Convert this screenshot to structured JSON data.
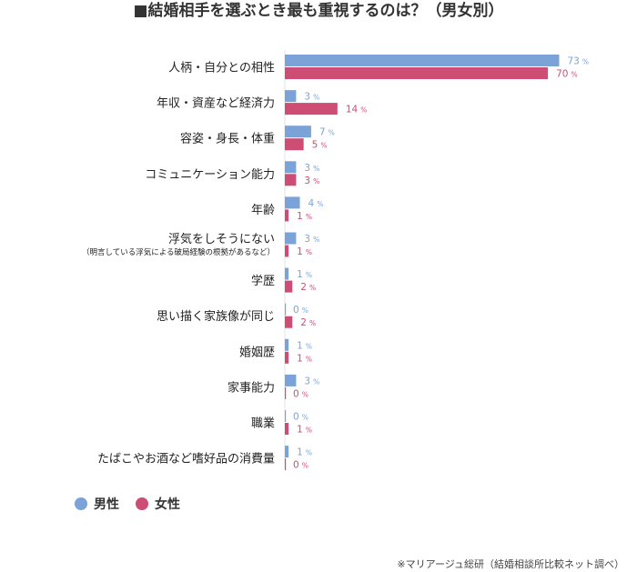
{
  "chart_data": {
    "type": "bar",
    "orientation": "horizontal",
    "title": "■結婚相手を選ぶとき最も重視するのは？（男女別）",
    "unit": "%",
    "categories": [
      "人柄・自分との相性",
      "年収・資産など経済力",
      "容姿・身長・体重",
      "コミュニケーション能力",
      "年齢",
      "浮気をしそうにない",
      "学歴",
      "思い描く家族像が同じ",
      "婚姻歴",
      "家事能力",
      "職業",
      "たばこやお酒など嗜好品の消費量"
    ],
    "category_notes": [
      "",
      "",
      "",
      "",
      "",
      "（明言している浮気による破局経験の根拠があるなど）",
      "",
      "",
      "",
      "",
      "",
      ""
    ],
    "series": [
      {
        "name": "男性",
        "color": "#7ba3d8",
        "values": [
          73,
          3,
          7,
          3,
          4,
          3,
          1,
          0,
          1,
          3,
          0,
          1
        ]
      },
      {
        "name": "女性",
        "color": "#cd4d75",
        "values": [
          70,
          14,
          5,
          3,
          1,
          1,
          2,
          2,
          1,
          0,
          1,
          0
        ]
      }
    ],
    "xlim": [
      0,
      80
    ],
    "legend": "bottom-left",
    "grid": false
  },
  "source": "※マリアージュ総研（結婚相談所比較ネット調べ）"
}
